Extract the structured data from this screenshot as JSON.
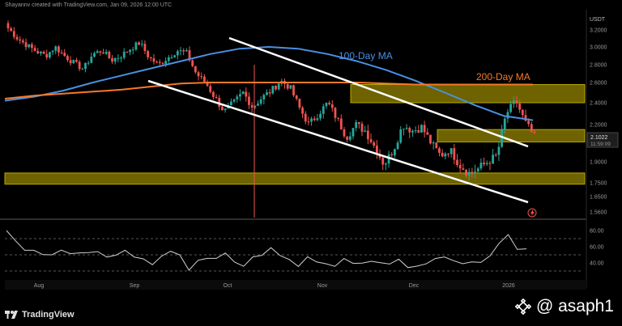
{
  "header": {
    "credit": "Shayannv created with TradingView.com, Jan 09, 2026 12:00 UTC"
  },
  "price_axis": {
    "currency": "USDT",
    "ticks": [
      "3.2000",
      "3.0000",
      "2.8000",
      "2.6000",
      "2.4000",
      "2.2000",
      "1.9000",
      "1.7500",
      "1.6500",
      "1.5600"
    ],
    "last_price": "2.1022",
    "countdown": "11:59:09"
  },
  "rsi_axis": {
    "ticks": [
      "80.00",
      "60.00",
      "40.00"
    ]
  },
  "time_axis": {
    "labels": [
      "Aug",
      "Sep",
      "Oct",
      "Nov",
      "Dec",
      "2026"
    ]
  },
  "annotations": {
    "ma100": "100-Day MA",
    "ma200": "200-Day MA"
  },
  "footer": {
    "logo_text": "TradingView",
    "watermark": "@ asaph1"
  },
  "colors": {
    "bull": "#26a69a",
    "bear": "#ef5350",
    "ma100": "#4a90e2",
    "ma200": "#f5792a",
    "zone": "#c8b400",
    "channel": "#ffffff",
    "rsi": "#d0d0d0"
  },
  "chart_data": {
    "type": "candlestick",
    "series": [
      {
        "name": "100-Day MA",
        "values": [
          2.42,
          2.46,
          2.52,
          2.6,
          2.68,
          2.76,
          2.84,
          2.92,
          2.98,
          3.0,
          2.98,
          2.92,
          2.84,
          2.74,
          2.62,
          2.5,
          2.38,
          2.28,
          2.24
        ]
      },
      {
        "name": "200-Day MA",
        "values": [
          2.44,
          2.47,
          2.49,
          2.51,
          2.53,
          2.56,
          2.59,
          2.6,
          2.6,
          2.6,
          2.6,
          2.6,
          2.6,
          2.59,
          2.58,
          2.58,
          2.58,
          2.58,
          2.58
        ]
      }
    ],
    "close_path": [
      3.22,
      3.1,
      3.02,
      2.95,
      2.9,
      3.0,
      2.9,
      2.82,
      2.75,
      2.92,
      2.96,
      2.85,
      2.9,
      2.98,
      3.05,
      2.88,
      2.8,
      2.88,
      2.96,
      2.93,
      2.7,
      2.6,
      2.45,
      2.32,
      2.4,
      2.5,
      2.36,
      2.45,
      2.52,
      2.62,
      2.55,
      2.35,
      2.2,
      2.3,
      2.4,
      2.25,
      2.1,
      2.2,
      2.15,
      2.02,
      1.88,
      2.0,
      2.2,
      2.15,
      2.18,
      2.05,
      1.95,
      2.0,
      1.88,
      1.82,
      1.85,
      1.9,
      1.95,
      2.3,
      2.42,
      2.22,
      2.1
    ],
    "resistance_zones": [
      [
        2.4,
        2.58
      ],
      [
        2.06,
        2.16
      ],
      [
        1.74,
        1.82
      ]
    ],
    "rsi": {
      "levels": [
        70,
        50,
        30
      ],
      "values": [
        80,
        66,
        58,
        55,
        52,
        50,
        57,
        49,
        53,
        51,
        54,
        46,
        52,
        55,
        49,
        45,
        39,
        46,
        55,
        48,
        31,
        42,
        48,
        45,
        54,
        41,
        37,
        45,
        50,
        57,
        49,
        43,
        38,
        47,
        43,
        39,
        37,
        43,
        40,
        38,
        42,
        39,
        41,
        44,
        36,
        36,
        40,
        43,
        48,
        41,
        39,
        40,
        43,
        48,
        66,
        75,
        58,
        55
      ]
    },
    "ylabel": "USDT",
    "x_labels": [
      "Aug",
      "Sep",
      "Oct",
      "Nov",
      "Dec",
      "2026"
    ]
  }
}
